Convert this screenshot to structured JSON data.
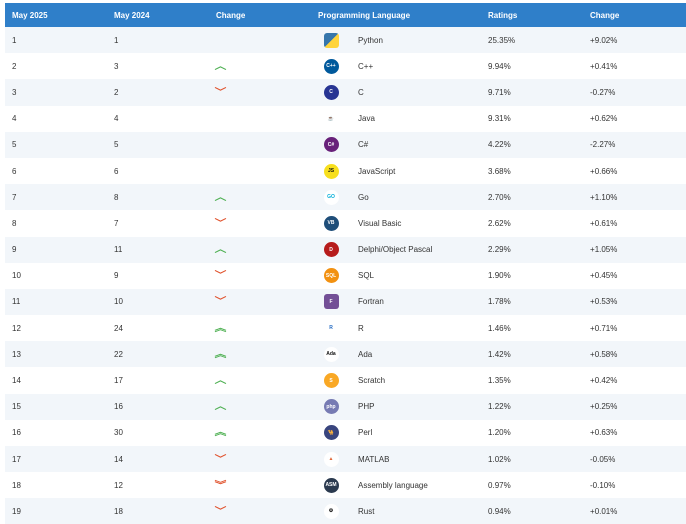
{
  "header": {
    "col_may2025": "May 2025",
    "col_may2024": "May 2024",
    "col_change": "Change",
    "col_language": "Programming Language",
    "col_ratings": "Ratings",
    "col_change_pct": "Change"
  },
  "colors": {
    "header_bg": "#2f7fc9",
    "row_alt_bg": "#f2f6fa",
    "up_arrow": "#4caf50",
    "down_arrow": "#e0502a"
  },
  "rows": [
    {
      "rank2025": "1",
      "rank2024": "1",
      "trend": "none",
      "arrow": "",
      "icon": "python-icon",
      "language": "Python",
      "rating": "25.35%",
      "change": "+9.02%"
    },
    {
      "rank2025": "2",
      "rank2024": "3",
      "trend": "up",
      "arrow": "^",
      "icon": "cpp-icon",
      "language": "C++",
      "rating": "9.94%",
      "change": "+0.41%"
    },
    {
      "rank2025": "3",
      "rank2024": "2",
      "trend": "down",
      "arrow": "⌄",
      "icon": "c-icon",
      "language": "C",
      "rating": "9.71%",
      "change": "-0.27%"
    },
    {
      "rank2025": "4",
      "rank2024": "4",
      "trend": "none",
      "arrow": "",
      "icon": "java-icon",
      "language": "Java",
      "rating": "9.31%",
      "change": "+0.62%"
    },
    {
      "rank2025": "5",
      "rank2024": "5",
      "trend": "none",
      "arrow": "",
      "icon": "csharp-icon",
      "language": "C#",
      "rating": "4.22%",
      "change": "-2.27%"
    },
    {
      "rank2025": "6",
      "rank2024": "6",
      "trend": "none",
      "arrow": "",
      "icon": "javascript-icon",
      "language": "JavaScript",
      "rating": "3.68%",
      "change": "+0.66%"
    },
    {
      "rank2025": "7",
      "rank2024": "8",
      "trend": "up",
      "arrow": "^",
      "icon": "go-icon",
      "language": "Go",
      "rating": "2.70%",
      "change": "+1.10%"
    },
    {
      "rank2025": "8",
      "rank2024": "7",
      "trend": "down",
      "arrow": "⌄",
      "icon": "visual-basic-icon",
      "language": "Visual Basic",
      "rating": "2.62%",
      "change": "+0.61%"
    },
    {
      "rank2025": "9",
      "rank2024": "11",
      "trend": "up",
      "arrow": "^",
      "icon": "delphi-icon",
      "language": "Delphi/Object Pascal",
      "rating": "2.29%",
      "change": "+1.05%"
    },
    {
      "rank2025": "10",
      "rank2024": "9",
      "trend": "down",
      "arrow": "⌄",
      "icon": "sql-icon",
      "language": "SQL",
      "rating": "1.90%",
      "change": "+0.45%"
    },
    {
      "rank2025": "11",
      "rank2024": "10",
      "trend": "down",
      "arrow": "⌄",
      "icon": "fortran-icon",
      "language": "Fortran",
      "rating": "1.78%",
      "change": "+0.53%"
    },
    {
      "rank2025": "12",
      "rank2024": "24",
      "trend": "up2",
      "arrow": "»",
      "icon": "r-icon",
      "language": "R",
      "rating": "1.46%",
      "change": "+0.71%"
    },
    {
      "rank2025": "13",
      "rank2024": "22",
      "trend": "up2",
      "arrow": "»",
      "icon": "ada-icon",
      "language": "Ada",
      "rating": "1.42%",
      "change": "+0.58%"
    },
    {
      "rank2025": "14",
      "rank2024": "17",
      "trend": "up",
      "arrow": "^",
      "icon": "scratch-icon",
      "language": "Scratch",
      "rating": "1.35%",
      "change": "+0.42%"
    },
    {
      "rank2025": "15",
      "rank2024": "16",
      "trend": "up",
      "arrow": "^",
      "icon": "php-icon",
      "language": "PHP",
      "rating": "1.22%",
      "change": "+0.25%"
    },
    {
      "rank2025": "16",
      "rank2024": "30",
      "trend": "up2",
      "arrow": "»",
      "icon": "perl-icon",
      "language": "Perl",
      "rating": "1.20%",
      "change": "+0.63%"
    },
    {
      "rank2025": "17",
      "rank2024": "14",
      "trend": "down",
      "arrow": "⌄",
      "icon": "matlab-icon",
      "language": "MATLAB",
      "rating": "1.02%",
      "change": "-0.05%"
    },
    {
      "rank2025": "18",
      "rank2024": "12",
      "trend": "down2",
      "arrow": "»",
      "icon": "assembly-icon",
      "language": "Assembly language",
      "rating": "0.97%",
      "change": "-0.10%"
    },
    {
      "rank2025": "19",
      "rank2024": "18",
      "trend": "down",
      "arrow": "⌄",
      "icon": "rust-icon",
      "language": "Rust",
      "rating": "0.94%",
      "change": "+0.01%"
    }
  ]
}
